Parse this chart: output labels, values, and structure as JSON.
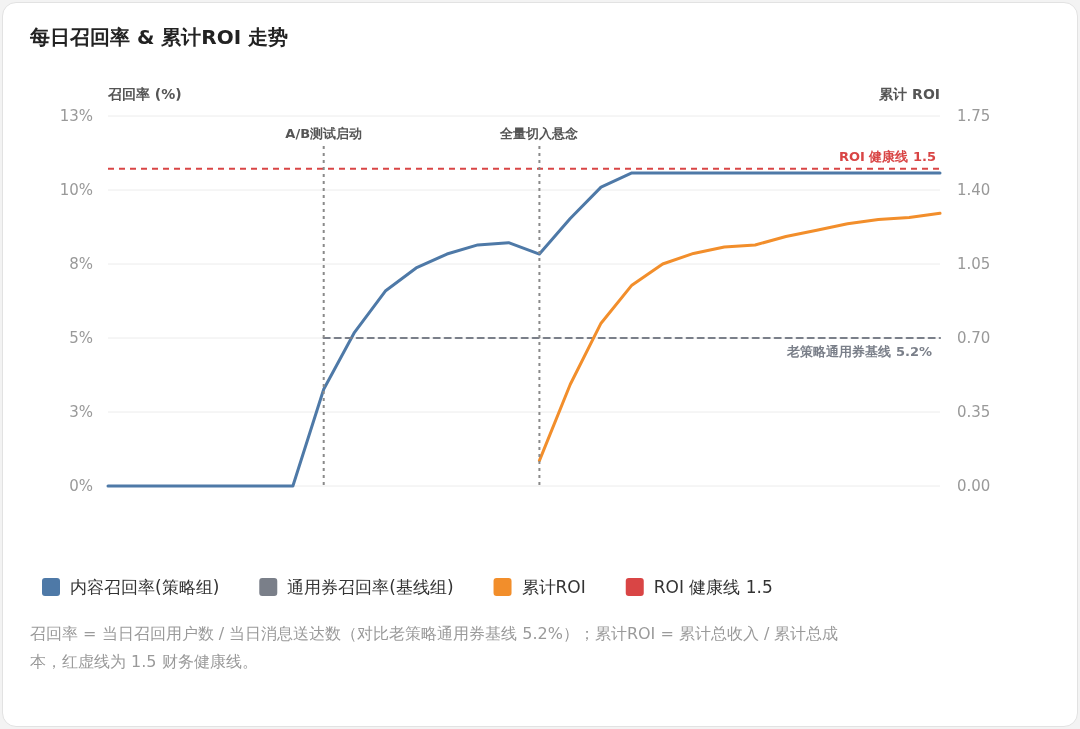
{
  "chart_data": {
    "type": "line",
    "title": "每日召回率 & 累计ROI 走势",
    "ylabel": "召回率 (%)",
    "y2label": "累计 ROI",
    "categories": [
      null,
      null,
      null,
      null,
      null,
      null,
      null,
      null,
      null,
      null,
      null,
      null,
      null,
      null,
      null,
      null,
      null,
      null,
      null,
      null,
      null,
      null,
      null,
      null,
      null,
      null,
      null,
      null
    ],
    "series": [
      {
        "name": "内容召回率(策略组)",
        "color": "#4e79a7",
        "values": [
          0,
          0,
          0,
          0,
          0,
          0,
          0,
          3.4,
          5.4,
          6.85,
          7.66,
          8.15,
          8.47,
          8.55,
          8.15,
          9.4,
          10.5,
          11.0,
          11.0,
          11.0,
          11.0,
          11.0,
          11.0,
          11.0,
          11.0,
          11.0,
          11.0,
          11.0
        ]
      },
      {
        "name": "通用券召回率(基线组)",
        "color": "#7a7f89",
        "line_style": "dashed",
        "values": [
          null,
          null,
          null,
          null,
          null,
          null,
          null,
          5.2,
          5.2,
          5.2,
          5.2,
          5.2,
          5.2,
          5.2,
          5.2,
          5.2,
          5.2,
          5.2,
          5.2,
          5.2,
          5.2,
          5.2,
          5.2,
          5.2,
          5.2,
          5.2,
          5.2,
          5.2
        ]
      },
      {
        "name": "累计ROI",
        "color": "#f28e2b",
        "axis": "y2",
        "values": [
          null,
          null,
          null,
          null,
          null,
          null,
          null,
          null,
          null,
          null,
          null,
          null,
          null,
          null,
          0.12,
          0.48,
          0.77,
          0.95,
          1.05,
          1.1,
          1.13,
          1.14,
          1.18,
          1.21,
          1.24,
          1.26,
          1.27,
          1.29
        ]
      }
    ],
    "ylim": [
      0,
      13
    ],
    "yticks": [
      {
        "value": 0,
        "label": "0%"
      },
      {
        "value": 2.6,
        "label": "3%"
      },
      {
        "value": 5.2,
        "label": "5%"
      },
      {
        "value": 7.8,
        "label": "8%"
      },
      {
        "value": 10.4,
        "label": "10%"
      },
      {
        "value": 13,
        "label": "13%"
      }
    ],
    "y2lim": [
      0,
      1.75
    ],
    "y2ticks": [
      {
        "value": 0,
        "label": "0.00"
      },
      {
        "value": 0.35,
        "label": "0.35"
      },
      {
        "value": 0.7,
        "label": "0.70"
      },
      {
        "value": 1.05,
        "label": "1.05"
      },
      {
        "value": 1.4,
        "label": "1.40"
      },
      {
        "value": 1.75,
        "label": "1.75"
      }
    ],
    "ref_lines": [
      {
        "axis": "y2",
        "value": 1.5,
        "label": "ROI 健康线 1.5",
        "color": "#d94545",
        "line_style": "dashed"
      }
    ],
    "annotations": [
      "A/B测试启动",
      "全量切入悬念",
      {
        "text": "老策略通用券基线 5.2%",
        "y": 5.2
      },
      "召回率 = 当日召回用户数 / 当日消息送达数（对比老策略通用券基线 5.2%）；累计ROI = 累计总收入 / 累计总成本，红虚线为 1.5 财务健康线。"
    ],
    "grid": "y",
    "legend": "bottom"
  }
}
